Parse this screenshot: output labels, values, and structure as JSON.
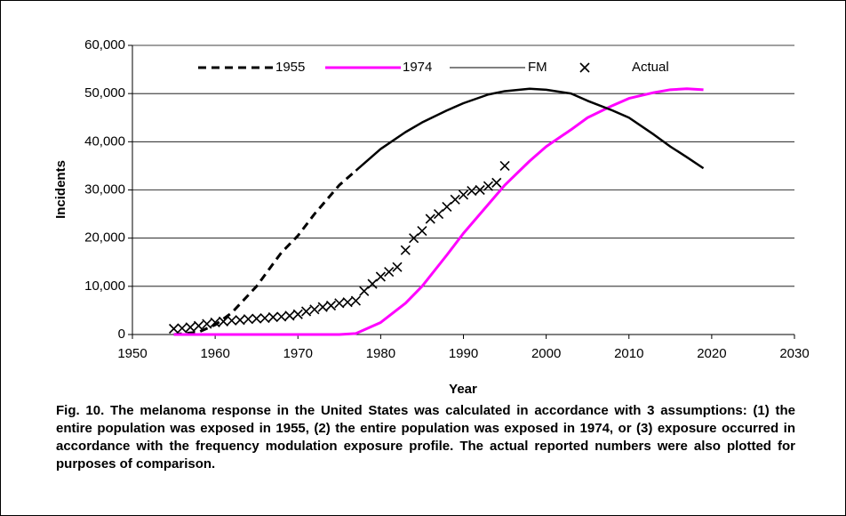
{
  "chart_data": {
    "type": "line",
    "x_label": "Year",
    "y_label": "Incidents",
    "caption": "Fig. 10. The melanoma response in the United States was calculated in accordance with 3 assumptions: (1) the entire population was exposed in 1955, (2) the entire population was exposed in 1974, or (3) exposure occurred in accordance with the frequency modulation exposure profile. The actual reported numbers were also plotted for purposes of comparison.",
    "xlim": [
      1950,
      2030
    ],
    "xticks": [
      1950,
      1960,
      1970,
      1980,
      1990,
      2000,
      2010,
      2020,
      2030
    ],
    "ylim": [
      0,
      60000
    ],
    "yticks": [
      0,
      {
        "value": 10000,
        "label": "10,000"
      },
      {
        "value": 20000,
        "label": "20,000"
      },
      {
        "value": 30000,
        "label": "30,000"
      },
      {
        "value": 40000,
        "label": "40,000"
      },
      {
        "value": 50000,
        "label": "50,000"
      },
      {
        "value": 60000,
        "label": "60,000"
      }
    ],
    "grid": true,
    "series": [
      {
        "name": "1955",
        "color": "#000000",
        "style": "dashed",
        "x": [
          1955,
          1958,
          1960,
          1962,
          1965,
          1968,
          1970,
          1972,
          1975,
          1977
        ],
        "values": [
          0,
          500,
          2000,
          4500,
          10000,
          17000,
          20500,
          25000,
          31000,
          34000
        ]
      },
      {
        "name": "1974",
        "color": "#ff00ff",
        "style": "solid",
        "x": [
          1955,
          1960,
          1965,
          1970,
          1975,
          1977,
          1980,
          1983,
          1985,
          1988,
          1990,
          1993,
          1995,
          1998,
          2000,
          2003,
          2005,
          2008,
          2010,
          2013,
          2015,
          2017,
          2019
        ],
        "values": [
          0,
          0,
          0,
          0,
          0,
          200,
          2500,
          6500,
          10000,
          16500,
          21000,
          27000,
          31000,
          36000,
          39000,
          42500,
          45000,
          47500,
          49000,
          50200,
          50800,
          51000,
          50800
        ]
      },
      {
        "name": "FM",
        "color": "#000000",
        "style": "thin",
        "x": [
          1977,
          1980,
          1983,
          1985,
          1988,
          1990,
          1993,
          1995,
          1998,
          2000,
          2003,
          2005,
          2008,
          2010,
          2013,
          2015,
          2017,
          2019
        ],
        "values": [
          34000,
          38500,
          42000,
          44000,
          46500,
          48000,
          49800,
          50500,
          51000,
          50800,
          50000,
          48500,
          46500,
          45000,
          41500,
          39000,
          36800,
          34500
        ]
      },
      {
        "name": "Actual",
        "color": "#000000",
        "style": "x-marker",
        "x": [
          1955,
          1956,
          1957,
          1958,
          1959,
          1960,
          1961,
          1962,
          1963,
          1964,
          1965,
          1966,
          1967,
          1968,
          1969,
          1970,
          1971,
          1972,
          1973,
          1974,
          1975,
          1976,
          1977,
          1978,
          1979,
          1980,
          1981,
          1982,
          1983,
          1984,
          1985,
          1986,
          1987,
          1988,
          1989,
          1990,
          1991,
          1992,
          1993,
          1994,
          1995
        ],
        "values": [
          1200,
          1300,
          1500,
          1800,
          2200,
          2500,
          2700,
          2900,
          3000,
          3200,
          3300,
          3400,
          3600,
          3700,
          3900,
          4200,
          4800,
          5200,
          5700,
          6000,
          6500,
          6700,
          7000,
          9000,
          10500,
          12000,
          13000,
          14000,
          17500,
          20000,
          21500,
          24000,
          25000,
          26500,
          28000,
          29000,
          29800,
          30000,
          30800,
          31500,
          35000
        ]
      }
    ]
  }
}
